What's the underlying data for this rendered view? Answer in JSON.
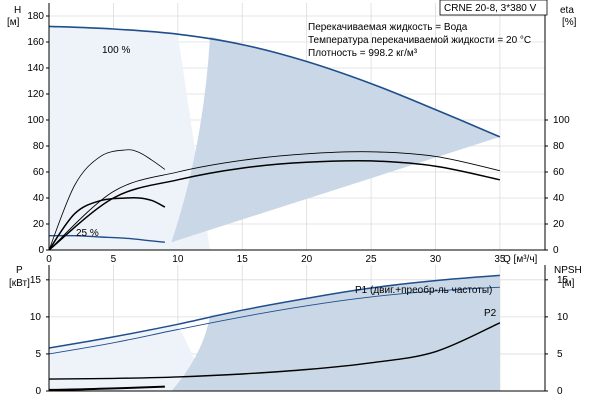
{
  "header": {
    "model": "CRNE 20-8, 3*380 V",
    "liquid": "Перекачиваемая жидкость = Вода",
    "temperature": "Температура перекачиваемой жидкости = 20 °C",
    "density": "Плотность = 998.2 кг/м³"
  },
  "colors": {
    "main_curve": "#1f4e8c",
    "region_fill": "#c9d7e6",
    "region_light": "#eef3fa",
    "grid": "#dcdcdc",
    "line": "#000000"
  },
  "chart_data": [
    {
      "type": "line",
      "panel": "top",
      "title": "",
      "x_label": "Q [м³/ч]",
      "x_ticks": [
        "0",
        "5",
        "10",
        "15",
        "20",
        "25",
        "30",
        "35"
      ],
      "xlim": [
        0,
        38.5
      ],
      "y_left": {
        "label": "H",
        "unit": "[м]",
        "ticks": [
          "0",
          "20",
          "40",
          "60",
          "80",
          "100",
          "120",
          "140",
          "160",
          "180"
        ],
        "ylim": [
          0,
          190
        ]
      },
      "y_right": {
        "label": "eta",
        "unit": "[%]",
        "ticks": [
          "0",
          "20",
          "40",
          "60",
          "80",
          "100"
        ]
      },
      "annotations": [
        "100 %",
        "25 %"
      ],
      "grid": true,
      "series": [
        {
          "id": "head_100",
          "x": [
            0,
            5,
            10,
            15,
            20,
            25,
            30,
            35
          ],
          "y": [
            172,
            170,
            166,
            158,
            145,
            128,
            108,
            87
          ]
        },
        {
          "id": "head_25",
          "x": [
            0,
            2,
            4,
            6,
            8,
            9
          ],
          "y": [
            11,
            11,
            10,
            9,
            7,
            6
          ]
        },
        {
          "id": "eta_upper",
          "x": [
            0,
            5,
            10,
            15,
            20,
            25,
            30,
            35
          ],
          "y": [
            0,
            45,
            60,
            69,
            74,
            75.5,
            72,
            61
          ]
        },
        {
          "id": "eta_lower",
          "x": [
            0,
            5,
            10,
            15,
            20,
            25,
            30,
            35
          ],
          "y": [
            0,
            40,
            54,
            63,
            67.5,
            68.5,
            64.5,
            54
          ]
        },
        {
          "id": "eta_25_upper",
          "x": [
            0,
            2,
            4,
            6,
            7,
            8,
            9
          ],
          "y": [
            0,
            50,
            72,
            77,
            75,
            69,
            62
          ]
        },
        {
          "id": "eta_25_lower",
          "x": [
            0,
            2,
            4,
            6,
            7,
            8,
            9
          ],
          "y": [
            0,
            28,
            38,
            40,
            40,
            38,
            33
          ]
        }
      ]
    },
    {
      "type": "line",
      "panel": "bottom",
      "title": "",
      "y_left": {
        "label": "P",
        "unit": "[кВт]",
        "ticks": [
          "0",
          "5",
          "10",
          "15"
        ],
        "ylim": [
          0,
          17
        ]
      },
      "y_right": {
        "label": "NPSH",
        "unit": "[м]",
        "ticks": [
          "0",
          "5",
          "10",
          "15"
        ]
      },
      "grid": true,
      "series": [
        {
          "id": "P1",
          "name": "P1 (двиг.+преобр-ль частоты)",
          "x": [
            0,
            5,
            10,
            15,
            20,
            25,
            30,
            35
          ],
          "y": [
            5.8,
            7.3,
            9.0,
            10.9,
            12.5,
            13.9,
            14.9,
            15.6
          ]
        },
        {
          "id": "P2",
          "name": "P2",
          "x": [
            0,
            5,
            10,
            15,
            20,
            25,
            30,
            35
          ],
          "y": [
            5.0,
            6.5,
            8.3,
            10.0,
            11.5,
            12.7,
            13.5,
            14.0
          ]
        },
        {
          "id": "NPSH",
          "x": [
            0,
            5,
            10,
            15,
            20,
            25,
            30,
            35
          ],
          "y": [
            1.6,
            1.7,
            1.9,
            2.3,
            2.9,
            3.8,
            5.3,
            9.2
          ]
        },
        {
          "id": "P_25",
          "x": [
            0,
            3,
            6,
            9
          ],
          "y": [
            0.15,
            0.25,
            0.4,
            0.6
          ]
        }
      ]
    }
  ]
}
